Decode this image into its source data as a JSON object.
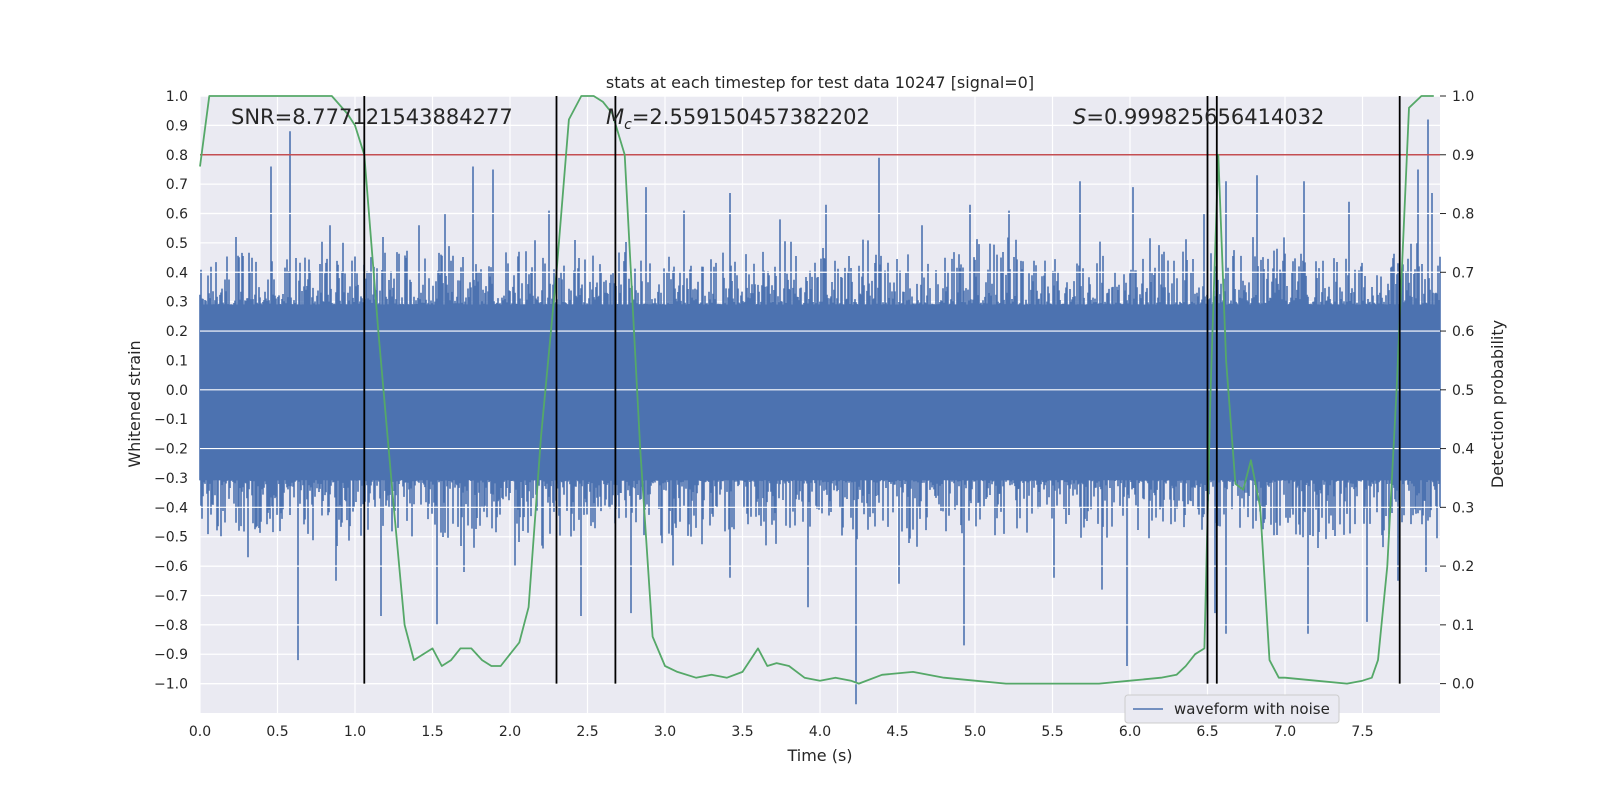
{
  "chart_data": {
    "type": "line",
    "title": "stats at each timestep for test data 10247 [signal=0]",
    "xlabel": "Time (s)",
    "ylabel_left": "Whitened strain",
    "ylabel_right": "Detection probability",
    "xlim": [
      0.0,
      8.0
    ],
    "ylim_left": [
      -1.1,
      1.0
    ],
    "ylim_right": [
      -0.05,
      1.0
    ],
    "x_ticks": [
      "0.0",
      "0.5",
      "1.0",
      "1.5",
      "2.0",
      "2.5",
      "3.0",
      "3.5",
      "4.0",
      "4.5",
      "5.0",
      "5.5",
      "6.0",
      "6.5",
      "7.0",
      "7.5"
    ],
    "y_ticks_left": [
      "1.0",
      "0.9",
      "0.8",
      "0.7",
      "0.6",
      "0.5",
      "0.4",
      "0.3",
      "0.2",
      "0.1",
      "0.0",
      "−0.1",
      "−0.2",
      "−0.3",
      "−0.4",
      "−0.5",
      "−0.6",
      "−0.7",
      "−0.8",
      "−0.9",
      "−1.0"
    ],
    "y_ticks_right": [
      "1.0",
      "0.9",
      "0.8",
      "0.7",
      "0.6",
      "0.5",
      "0.4",
      "0.3",
      "0.2",
      "0.1",
      "0.0"
    ],
    "grid": true,
    "legend": {
      "placement": "lower-right",
      "entries": [
        "waveform with noise"
      ]
    },
    "annotations": {
      "snr": "SNR=8.777121543884277",
      "mc_symbol": "M",
      "mc_sub": "c",
      "mc_value": "=2.559150457382202",
      "s_symbol": "S",
      "s_value": "=0.999825656414032"
    },
    "threshold": {
      "value": 0.9,
      "axis": "right",
      "color": "#c44e52"
    },
    "vertical_lines": [
      1.06,
      2.3,
      2.68,
      6.5,
      6.56,
      7.74
    ],
    "waveform": {
      "name": "waveform with noise",
      "color": "#4c72b0",
      "envelope_upper": 0.33,
      "envelope_lower": -0.35,
      "peaks": [
        [
          0.23,
          0.52
        ],
        [
          0.46,
          0.76
        ],
        [
          0.58,
          0.88
        ],
        [
          0.84,
          0.56
        ],
        [
          1.18,
          0.52
        ],
        [
          1.41,
          0.56
        ],
        [
          1.58,
          0.6
        ],
        [
          1.76,
          0.76
        ],
        [
          1.89,
          0.75
        ],
        [
          2.25,
          0.61
        ],
        [
          2.42,
          0.51
        ],
        [
          2.88,
          0.69
        ],
        [
          3.12,
          0.61
        ],
        [
          3.42,
          0.67
        ],
        [
          3.74,
          0.58
        ],
        [
          4.04,
          0.63
        ],
        [
          4.38,
          0.79
        ],
        [
          4.66,
          0.56
        ],
        [
          4.97,
          0.63
        ],
        [
          5.22,
          0.61
        ],
        [
          5.68,
          0.71
        ],
        [
          6.02,
          0.69
        ],
        [
          6.48,
          0.6
        ],
        [
          6.62,
          0.71
        ],
        [
          6.82,
          0.73
        ],
        [
          7.12,
          0.71
        ],
        [
          7.41,
          0.64
        ],
        [
          7.86,
          0.75
        ],
        [
          7.92,
          0.92
        ],
        [
          7.95,
          0.67
        ]
      ],
      "troughs": [
        [
          0.31,
          -0.57
        ],
        [
          0.63,
          -0.92
        ],
        [
          0.88,
          -0.65
        ],
        [
          1.17,
          -0.77
        ],
        [
          1.53,
          -0.8
        ],
        [
          1.7,
          -0.62
        ],
        [
          2.03,
          -0.6
        ],
        [
          2.46,
          -0.77
        ],
        [
          2.78,
          -0.76
        ],
        [
          3.05,
          -0.6
        ],
        [
          3.42,
          -0.64
        ],
        [
          3.92,
          -0.74
        ],
        [
          4.23,
          -1.07
        ],
        [
          4.51,
          -0.66
        ],
        [
          4.93,
          -0.87
        ],
        [
          5.51,
          -0.64
        ],
        [
          5.82,
          -0.68
        ],
        [
          5.98,
          -0.94
        ],
        [
          6.55,
          -0.76
        ],
        [
          6.62,
          -0.83
        ],
        [
          7.15,
          -0.83
        ],
        [
          7.53,
          -0.79
        ],
        [
          7.73,
          -0.65
        ],
        [
          7.91,
          -0.62
        ]
      ]
    },
    "probability": {
      "color": "#55a868",
      "x": [
        0.0,
        0.06,
        0.2,
        0.4,
        0.6,
        0.85,
        0.95,
        1.0,
        1.06,
        1.15,
        1.25,
        1.32,
        1.38,
        1.44,
        1.5,
        1.56,
        1.62,
        1.68,
        1.75,
        1.82,
        1.88,
        1.94,
        2.0,
        2.06,
        2.12,
        2.2,
        2.3,
        2.38,
        2.46,
        2.54,
        2.6,
        2.66,
        2.74,
        2.84,
        2.92,
        3.0,
        3.08,
        3.2,
        3.3,
        3.4,
        3.5,
        3.6,
        3.66,
        3.72,
        3.8,
        3.9,
        4.0,
        4.1,
        4.2,
        4.25,
        4.4,
        4.6,
        4.8,
        5.0,
        5.2,
        5.4,
        5.6,
        5.8,
        6.0,
        6.2,
        6.3,
        6.36,
        6.42,
        6.48,
        6.52,
        6.57,
        6.62,
        6.68,
        6.73,
        6.78,
        6.84,
        6.9,
        6.96,
        7.0,
        7.2,
        7.4,
        7.5,
        7.56,
        7.6,
        7.66,
        7.72,
        7.8,
        7.88,
        7.96
      ],
      "y": [
        0.88,
        1.0,
        1.0,
        1.0,
        1.0,
        1.0,
        0.97,
        0.95,
        0.9,
        0.6,
        0.3,
        0.1,
        0.04,
        0.05,
        0.06,
        0.03,
        0.04,
        0.06,
        0.06,
        0.04,
        0.03,
        0.03,
        0.05,
        0.07,
        0.13,
        0.42,
        0.7,
        0.96,
        1.0,
        1.0,
        0.99,
        0.97,
        0.9,
        0.4,
        0.08,
        0.03,
        0.02,
        0.01,
        0.015,
        0.01,
        0.02,
        0.06,
        0.03,
        0.035,
        0.03,
        0.01,
        0.005,
        0.01,
        0.005,
        0.0,
        0.015,
        0.02,
        0.01,
        0.005,
        0.0,
        0.0,
        0.0,
        0.0,
        0.005,
        0.01,
        0.015,
        0.03,
        0.05,
        0.06,
        0.5,
        0.9,
        0.55,
        0.34,
        0.33,
        0.38,
        0.3,
        0.04,
        0.01,
        0.01,
        0.005,
        0.0,
        0.005,
        0.01,
        0.04,
        0.2,
        0.5,
        0.98,
        1.0,
        1.0
      ]
    }
  }
}
